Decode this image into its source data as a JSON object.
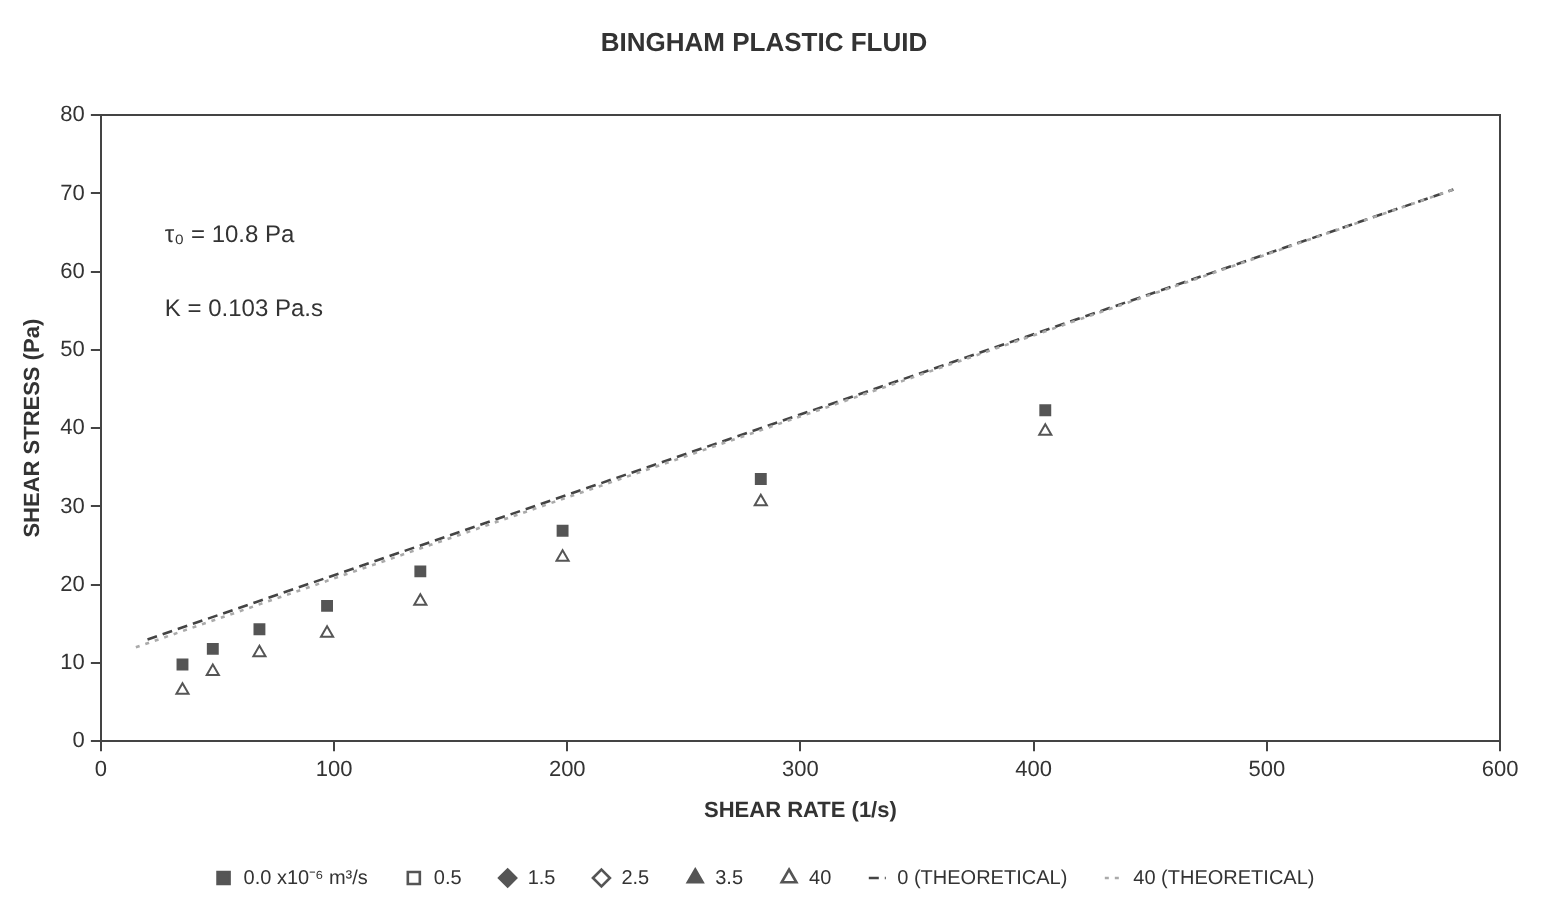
{
  "chart_data": {
    "type": "scatter",
    "title": "BINGHAM PLASTIC FLUID",
    "xlabel": "SHEAR RATE (1/s)",
    "ylabel": "SHEAR STRESS (Pa)",
    "xlim": [
      0,
      600
    ],
    "xticks": [
      0,
      100,
      200,
      300,
      400,
      500,
      600
    ],
    "ylim": [
      0,
      80
    ],
    "yticks": [
      0,
      10,
      20,
      30,
      40,
      50,
      60,
      70,
      80
    ],
    "grid": false,
    "legend": "bottom",
    "annotations": [
      "τ₀ = 10.8 Pa",
      "K = 0.103 Pa.s"
    ],
    "x": [
      35,
      48,
      68,
      97,
      137,
      198,
      283,
      405
    ],
    "series": [
      {
        "name": "0.0 x10⁻⁶ m³/s",
        "color": "#555555",
        "marker": "square",
        "values": [
          9.8,
          11.8,
          14.3,
          17.3,
          21.7,
          26.9,
          33.5,
          42.3
        ]
      },
      {
        "name": "0.5",
        "color": "#555555",
        "marker": "square",
        "values": [
          null,
          null,
          null,
          null,
          null,
          null,
          null,
          null
        ]
      },
      {
        "name": "1.5",
        "color": "#555555",
        "marker": "diamond",
        "values": [
          null,
          null,
          null,
          null,
          null,
          null,
          null,
          null
        ]
      },
      {
        "name": "2.5",
        "color": "#555555",
        "marker": "diamond",
        "values": [
          null,
          null,
          null,
          null,
          null,
          null,
          null,
          null
        ]
      },
      {
        "name": "3.5",
        "color": "#555555",
        "marker": "triangle",
        "values": [
          null,
          null,
          null,
          null,
          null,
          null,
          null,
          null
        ]
      },
      {
        "name": "40",
        "color": "#555555",
        "marker": "triangle",
        "values": [
          6.5,
          8.9,
          11.3,
          13.8,
          17.9,
          23.5,
          30.6,
          39.6
        ]
      },
      {
        "name": "0 (THEORETICAL)",
        "type": "line",
        "color": "#444444",
        "line_style": "dashed",
        "marker": "none",
        "x": [
          20,
          580
        ],
        "values": [
          13,
          70.5
        ]
      },
      {
        "name": "40 (THEORETICAL)",
        "type": "line",
        "color": "#aaaaaa",
        "line_style": "dotted",
        "marker": "none",
        "x": [
          15,
          580
        ],
        "values": [
          12,
          70.5
        ]
      }
    ]
  }
}
